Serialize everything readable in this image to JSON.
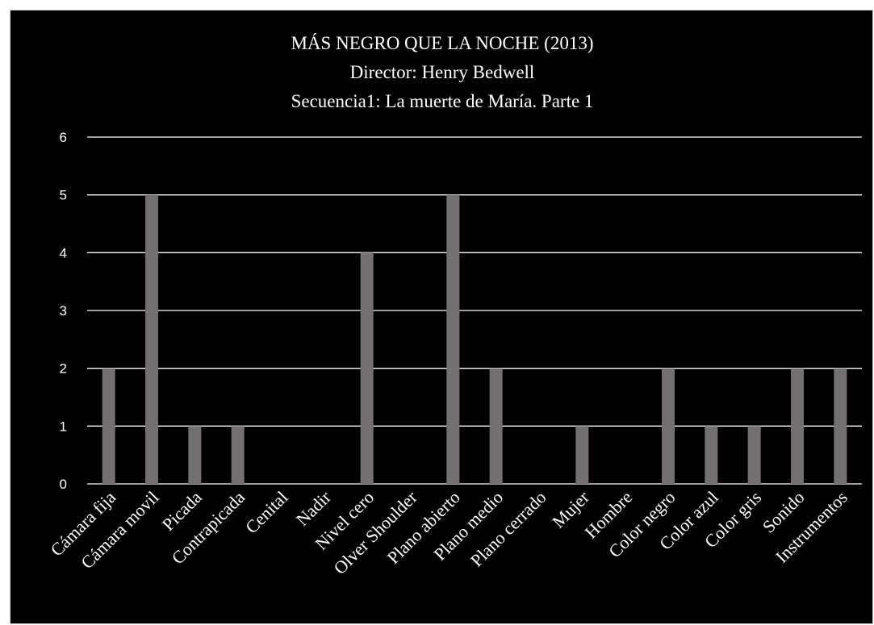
{
  "chart_data": {
    "type": "bar",
    "title": [
      "MÁS NEGRO QUE LA NOCHE (2013)",
      "Director: Henry Bedwell",
      "Secuencia1: La muerte de María. Parte 1"
    ],
    "categories": [
      "Cámara fija",
      "Cámara movil",
      "Picada",
      "Contrapicada",
      "Cenital",
      "Nadir",
      "Nivel cero",
      "Olver Shoulder",
      "Plano abierto",
      "Plano medio",
      "Plano cerrado",
      "Mujer",
      "Hombre",
      "Color negro",
      "Color azul",
      "Color gris",
      "Sonido",
      "Instrumentos"
    ],
    "values": [
      2,
      5,
      1,
      1,
      0,
      0,
      4,
      0,
      5,
      2,
      0,
      1,
      0,
      2,
      1,
      1,
      2,
      2
    ],
    "yticks": [
      0,
      1,
      2,
      3,
      4,
      5,
      6
    ],
    "ylim": [
      0,
      6
    ],
    "grid": true,
    "legend": false,
    "colors": {
      "background": "#000000",
      "bar": "#757070",
      "grid": "#ffffff",
      "text": "#ffffff"
    }
  }
}
